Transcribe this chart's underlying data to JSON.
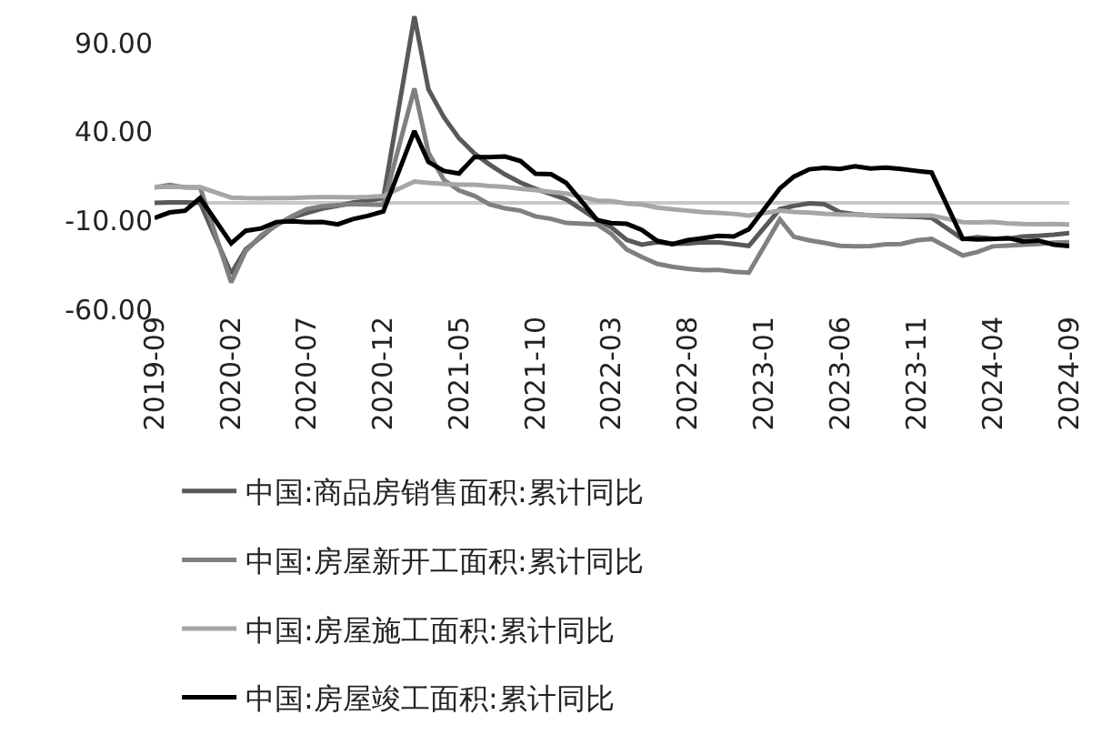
{
  "chart_data": {
    "type": "line",
    "x": [
      "2019-09",
      "2019-10",
      "2019-11",
      "2019-12",
      "2020-02",
      "2020-03",
      "2020-04",
      "2020-05",
      "2020-06",
      "2020-07",
      "2020-08",
      "2020-09",
      "2020-10",
      "2020-11",
      "2020-12",
      "2021-02",
      "2021-03",
      "2021-04",
      "2021-05",
      "2021-06",
      "2021-07",
      "2021-08",
      "2021-09",
      "2021-10",
      "2021-11",
      "2021-12",
      "2022-02",
      "2022-03",
      "2022-04",
      "2022-05",
      "2022-06",
      "2022-07",
      "2022-08",
      "2022-09",
      "2022-10",
      "2022-11",
      "2022-12",
      "2023-02",
      "2023-03",
      "2023-04",
      "2023-05",
      "2023-06",
      "2023-07",
      "2023-08",
      "2023-09",
      "2023-10",
      "2023-11",
      "2023-12",
      "2024-02",
      "2024-03",
      "2024-04",
      "2024-05",
      "2024-06",
      "2024-07",
      "2024-08",
      "2024-09"
    ],
    "series": [
      {
        "name": "中国:商品房销售面积:累计同比",
        "color": "#595959",
        "values": [
          -0.1,
          0.1,
          0.2,
          -0.1,
          -39.9,
          -26.3,
          -19.3,
          -12.3,
          -8.4,
          -5.8,
          -3.3,
          -1.8,
          0.0,
          1.3,
          2.6,
          104.9,
          63.8,
          48.1,
          36.3,
          27.7,
          21.5,
          15.9,
          11.3,
          7.8,
          4.8,
          1.9,
          -9.6,
          -13.8,
          -20.9,
          -23.6,
          -22.2,
          -23.1,
          -23.0,
          -22.2,
          -22.3,
          -23.3,
          -24.3,
          -3.6,
          -1.8,
          -0.4,
          -0.9,
          -5.3,
          -6.5,
          -7.1,
          -7.5,
          -7.8,
          -8.0,
          -8.5,
          -20.5,
          -19.4,
          -20.2,
          -20.3,
          -19.0,
          -18.6,
          -18.0,
          -17.1
        ]
      },
      {
        "name": "中国:房屋新开工面积:累计同比",
        "color": "#808080",
        "values": [
          8.6,
          10.0,
          8.6,
          8.5,
          -44.9,
          -27.2,
          -18.4,
          -12.8,
          -7.6,
          -3.6,
          -2.0,
          -1.4,
          -0.8,
          -1.0,
          -1.2,
          64.3,
          28.2,
          12.8,
          6.9,
          3.8,
          -0.9,
          -3.2,
          -4.5,
          -7.7,
          -9.1,
          -11.4,
          -12.2,
          -17.5,
          -26.3,
          -30.6,
          -34.4,
          -36.1,
          -37.2,
          -38.0,
          -37.8,
          -38.9,
          -39.4,
          -9.4,
          -19.2,
          -21.2,
          -22.6,
          -24.3,
          -24.5,
          -24.4,
          -23.4,
          -23.2,
          -21.2,
          -20.4,
          -29.7,
          -27.8,
          -24.6,
          -24.2,
          -23.7,
          -23.2,
          -22.5,
          -22.2
        ]
      },
      {
        "name": "中国:房屋施工面积:累计同比",
        "color": "#a6a6a6",
        "values": [
          8.7,
          9.0,
          8.7,
          8.7,
          2.9,
          2.6,
          2.5,
          2.6,
          2.6,
          3.0,
          3.1,
          3.1,
          3.0,
          3.2,
          3.7,
          11.9,
          11.2,
          10.5,
          10.1,
          10.2,
          9.4,
          8.9,
          7.9,
          7.1,
          6.0,
          5.2,
          1.2,
          1.0,
          -0.5,
          -1.0,
          -2.8,
          -3.7,
          -4.5,
          -5.3,
          -5.7,
          -6.3,
          -7.2,
          -4.4,
          -5.2,
          -5.6,
          -6.2,
          -6.6,
          -6.8,
          -7.1,
          -7.1,
          -7.3,
          -7.2,
          -7.2,
          -11.0,
          -11.1,
          -10.8,
          -11.6,
          -12.0,
          -12.1,
          -12.0,
          -12.2
        ]
      },
      {
        "name": "中国:房屋竣工面积:累计同比",
        "color": "#000000",
        "values": [
          -8.6,
          -5.5,
          -4.5,
          2.6,
          -22.9,
          -15.8,
          -14.5,
          -10.9,
          -10.5,
          -11.0,
          -10.8,
          -12.2,
          -9.2,
          -7.3,
          -4.9,
          40.4,
          22.9,
          17.9,
          16.4,
          25.7,
          25.7,
          26.0,
          23.4,
          16.3,
          16.0,
          11.2,
          -9.8,
          -11.5,
          -11.9,
          -15.3,
          -21.5,
          -23.3,
          -21.1,
          -19.9,
          -18.7,
          -19.0,
          -15.0,
          8.0,
          14.7,
          18.8,
          19.6,
          19.0,
          20.5,
          19.2,
          19.8,
          19.0,
          17.9,
          17.0,
          -20.2,
          -20.7,
          -20.4,
          -19.9,
          -21.8,
          -21.3,
          -23.6,
          -24.4
        ]
      }
    ],
    "xlim": [
      "2019-09",
      "2024-09"
    ],
    "xticks": [
      "2019-09",
      "2020-02",
      "2020-07",
      "2020-12",
      "2021-05",
      "2021-10",
      "2022-03",
      "2022-08",
      "2023-01",
      "2023-06",
      "2023-11",
      "2024-04",
      "2024-09"
    ],
    "ylim": [
      -60,
      110
    ],
    "yticks": [
      {
        "value": 90,
        "label": "90.00"
      },
      {
        "value": 40,
        "label": "40.00"
      },
      {
        "value": -10,
        "label": "-10.00"
      },
      {
        "value": -60,
        "label": "-60.00"
      }
    ],
    "grid": false,
    "legend": "bottom",
    "marker": "none",
    "line_style": "solid"
  }
}
